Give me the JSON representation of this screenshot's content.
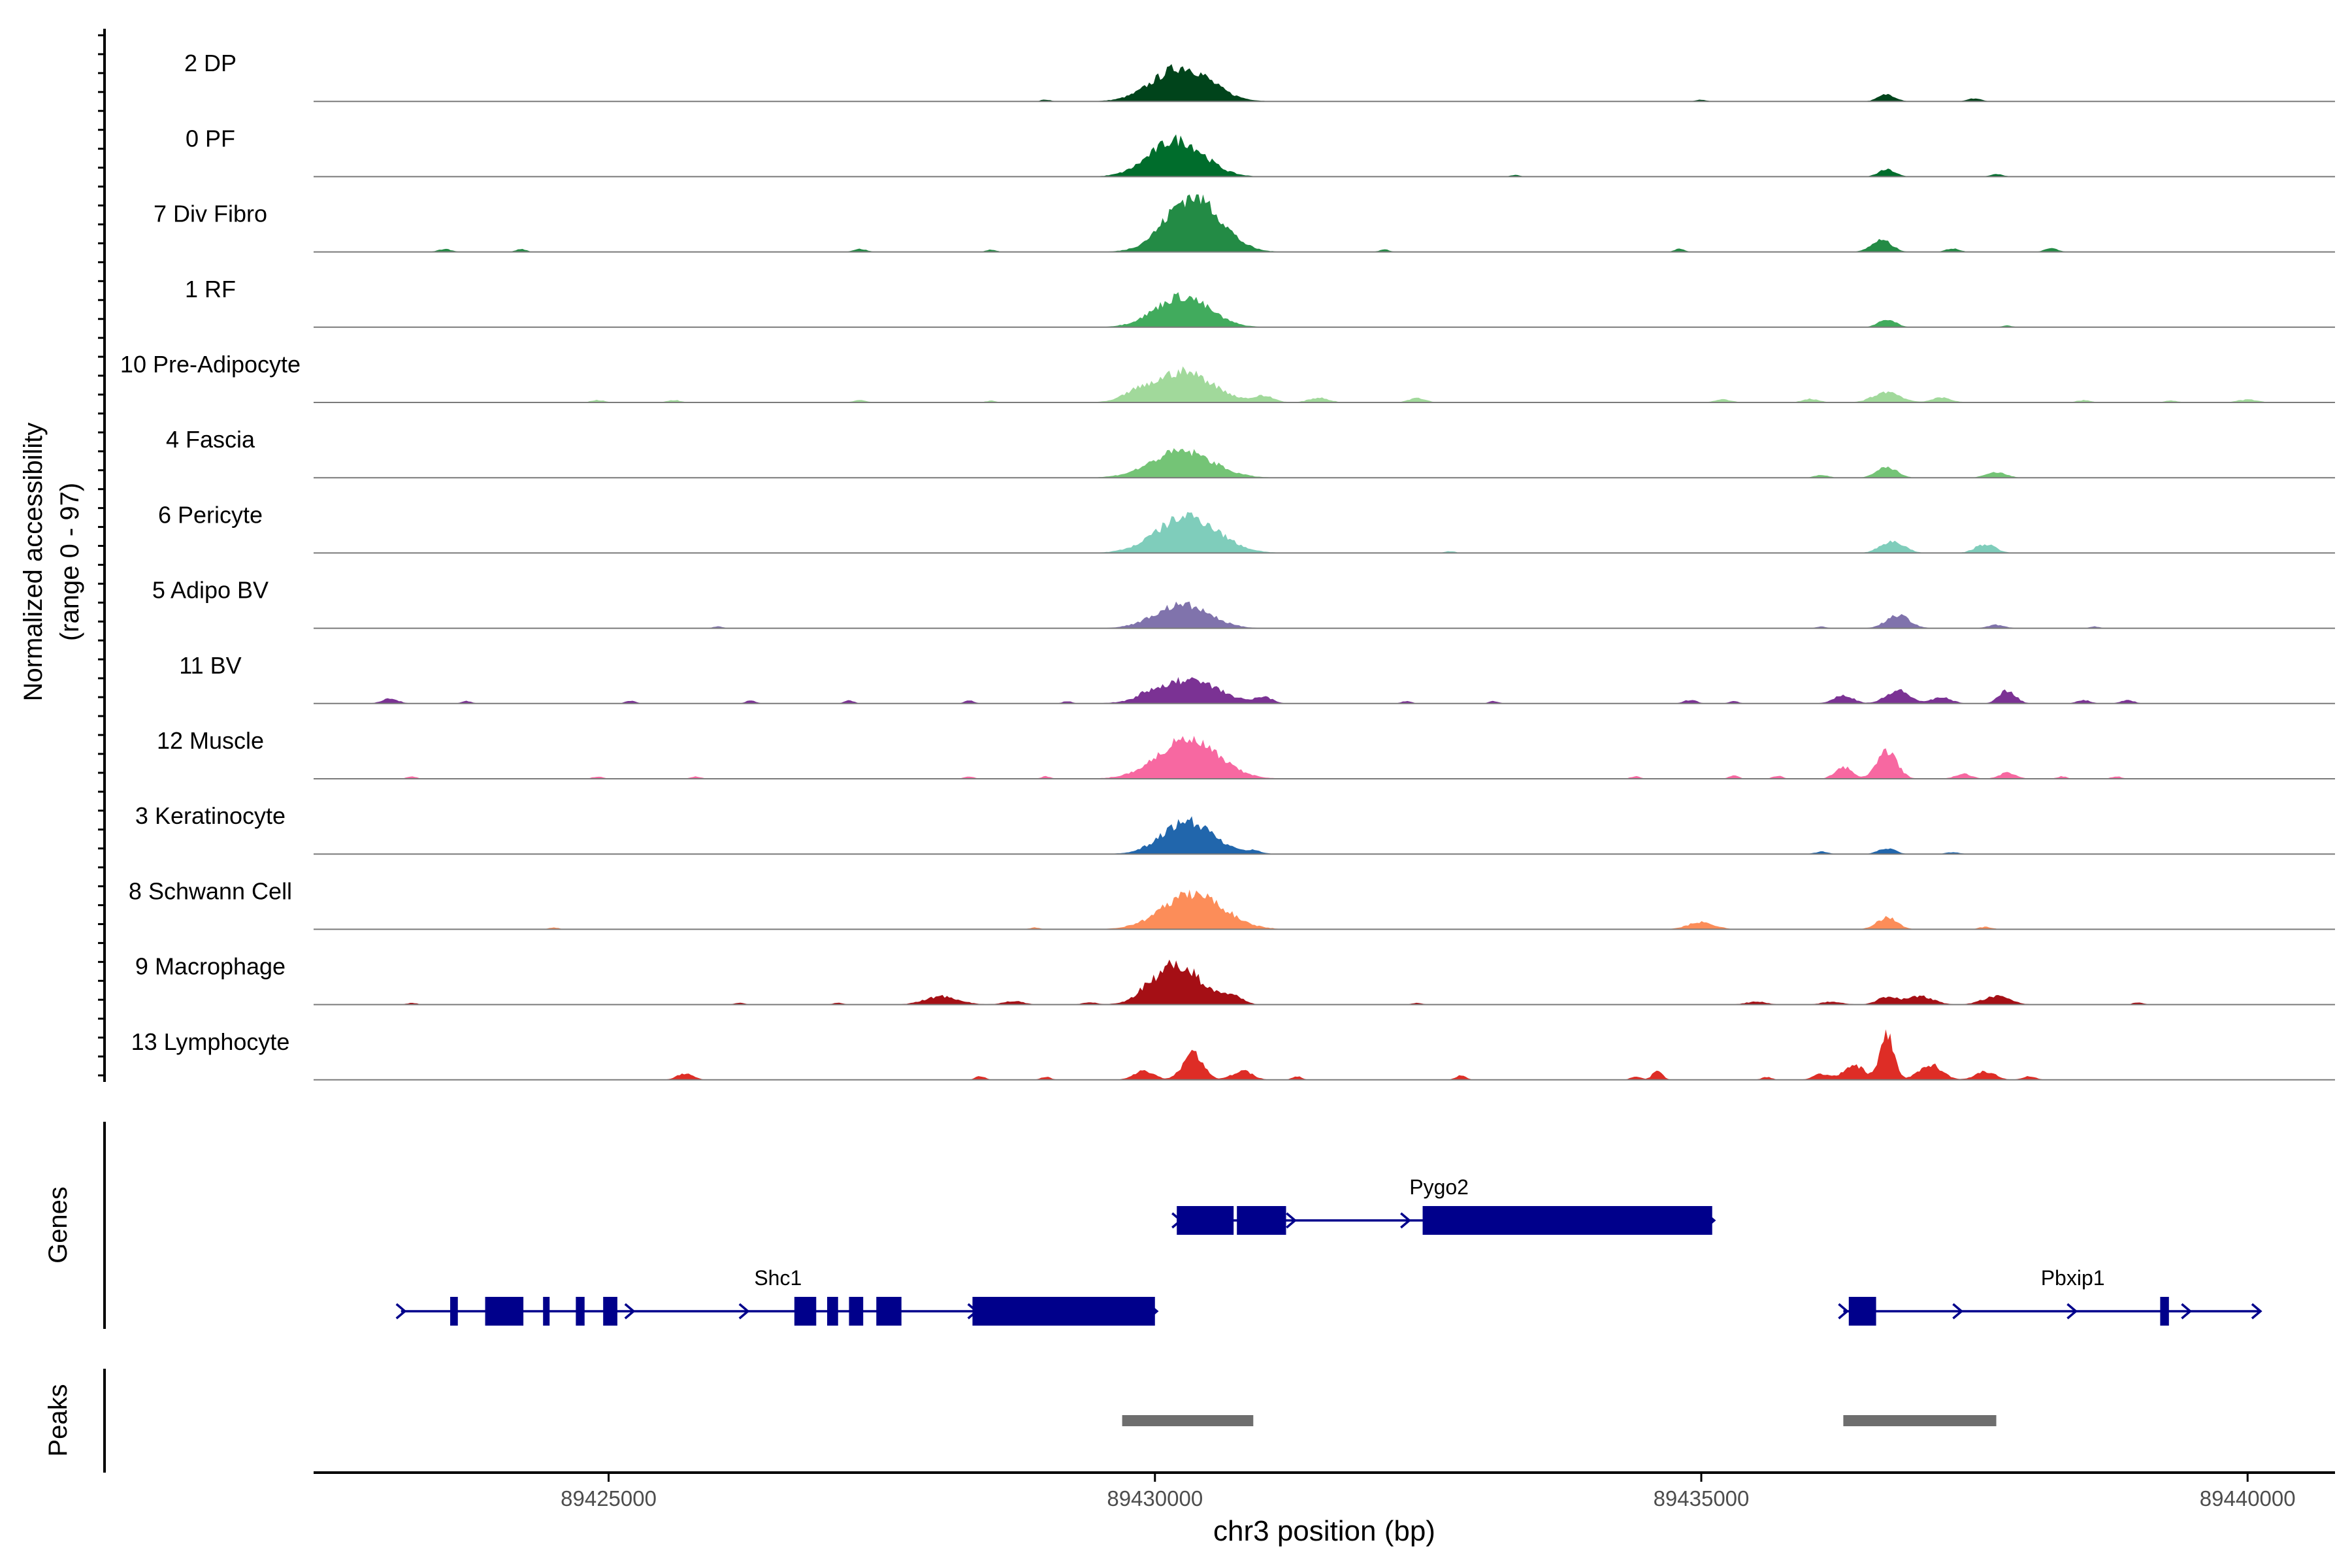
{
  "chart_data": {
    "type": "genome-track",
    "title": "",
    "ylabel_line1": "Normalized accessibility",
    "ylabel_line2": "(range 0 - 97)",
    "y_range": [
      0,
      97
    ],
    "xlabel": "chr3 position (bp)",
    "chromosome": "chr3",
    "xlim": [
      89422300,
      89440800
    ],
    "x_ticks": [
      89425000,
      89430000,
      89435000,
      89440000
    ],
    "x_tick_labels": [
      "89425000",
      "89430000",
      "89435000",
      "89440000"
    ],
    "tracks": [
      {
        "label": "2 DP",
        "color": "#00441b",
        "peaks": [
          [
            89430250,
            58,
            850
          ],
          [
            89436700,
            12,
            250
          ],
          [
            89437500,
            5,
            200
          ],
          [
            89429000,
            3,
            150
          ],
          [
            89435000,
            3,
            150
          ]
        ]
      },
      {
        "label": "0 PF",
        "color": "#006d2c",
        "peaks": [
          [
            89430200,
            62,
            800
          ],
          [
            89436700,
            12,
            250
          ],
          [
            89437700,
            4,
            200
          ],
          [
            89433300,
            3,
            150
          ]
        ]
      },
      {
        "label": "7 Div Fibro",
        "color": "#238b45",
        "peaks": [
          [
            89430350,
            95,
            800
          ],
          [
            89436650,
            20,
            300
          ],
          [
            89437300,
            6,
            200
          ],
          [
            89438200,
            6,
            200
          ],
          [
            89423500,
            5,
            200
          ],
          [
            89424200,
            5,
            150
          ],
          [
            89427300,
            5,
            200
          ],
          [
            89428500,
            4,
            150
          ],
          [
            89432100,
            4,
            150
          ],
          [
            89434800,
            5,
            150
          ]
        ]
      },
      {
        "label": "1 RF",
        "color": "#41ab5d",
        "peaks": [
          [
            89430250,
            52,
            800
          ],
          [
            89436700,
            14,
            250
          ],
          [
            89437800,
            3,
            150
          ]
        ]
      },
      {
        "label": "10 Pre-Adipocyte",
        "color": "#a1d99b",
        "peaks": [
          [
            89430250,
            52,
            900
          ],
          [
            89431000,
            10,
            300
          ],
          [
            89431500,
            8,
            300
          ],
          [
            89432400,
            8,
            250
          ],
          [
            89436700,
            18,
            400
          ],
          [
            89437200,
            8,
            300
          ],
          [
            89436000,
            6,
            250
          ],
          [
            89435200,
            5,
            250
          ],
          [
            89438500,
            4,
            200
          ],
          [
            89440000,
            5,
            300
          ],
          [
            89424900,
            4,
            200
          ],
          [
            89425600,
            4,
            200
          ],
          [
            89427300,
            4,
            200
          ],
          [
            89428500,
            3,
            150
          ],
          [
            89429800,
            8,
            300
          ],
          [
            89439300,
            3,
            200
          ]
        ]
      },
      {
        "label": "4 Fascia",
        "color": "#74c476",
        "peaks": [
          [
            89430250,
            45,
            900
          ],
          [
            89436700,
            18,
            300
          ],
          [
            89437700,
            9,
            300
          ],
          [
            89436100,
            5,
            200
          ]
        ]
      },
      {
        "label": "6 Pericyte",
        "color": "#7fcdbb",
        "peaks": [
          [
            89430300,
            62,
            900
          ],
          [
            89436750,
            20,
            350
          ],
          [
            89437600,
            15,
            300
          ],
          [
            89432700,
            3,
            150
          ]
        ]
      },
      {
        "label": "5 Adipo BV",
        "color": "#8073ac",
        "peaks": [
          [
            89430250,
            40,
            800
          ],
          [
            89436800,
            22,
            350
          ],
          [
            89437700,
            6,
            250
          ],
          [
            89426000,
            3,
            150
          ],
          [
            89436100,
            3,
            150
          ],
          [
            89438600,
            3,
            150
          ]
        ]
      },
      {
        "label": "11 BV",
        "color": "#7b3294",
        "peaks": [
          [
            89430300,
            40,
            900
          ],
          [
            89436800,
            22,
            350
          ],
          [
            89437800,
            22,
            250
          ],
          [
            89436300,
            14,
            300
          ],
          [
            89437200,
            10,
            300
          ],
          [
            89423000,
            8,
            250
          ],
          [
            89423700,
            4,
            150
          ],
          [
            89425200,
            5,
            150
          ],
          [
            89426300,
            5,
            150
          ],
          [
            89427200,
            5,
            150
          ],
          [
            89428300,
            5,
            150
          ],
          [
            89431000,
            10,
            250
          ],
          [
            89432300,
            4,
            150
          ],
          [
            89433100,
            4,
            150
          ],
          [
            89434900,
            6,
            200
          ],
          [
            89435300,
            4,
            150
          ],
          [
            89438500,
            6,
            200
          ],
          [
            89438900,
            6,
            200
          ],
          [
            89429200,
            4,
            150
          ],
          [
            89429900,
            6,
            200
          ]
        ]
      },
      {
        "label": "12 Muscle",
        "color": "#f768a1",
        "peaks": [
          [
            89430300,
            65,
            900
          ],
          [
            89436700,
            45,
            300
          ],
          [
            89436300,
            20,
            250
          ],
          [
            89437400,
            8,
            250
          ],
          [
            89437800,
            10,
            250
          ],
          [
            89423200,
            4,
            150
          ],
          [
            89424900,
            4,
            150
          ],
          [
            89425800,
            4,
            150
          ],
          [
            89428300,
            4,
            150
          ],
          [
            89429000,
            4,
            150
          ],
          [
            89434400,
            4,
            150
          ],
          [
            89435300,
            5,
            150
          ],
          [
            89435700,
            5,
            150
          ],
          [
            89438300,
            4,
            150
          ],
          [
            89438800,
            4,
            150
          ]
        ]
      },
      {
        "label": "3 Keratinocyte",
        "color": "#2166ac",
        "peaks": [
          [
            89430300,
            55,
            750
          ],
          [
            89436700,
            10,
            250
          ],
          [
            89436100,
            4,
            200
          ],
          [
            89437300,
            3,
            200
          ],
          [
            89430900,
            5,
            250
          ]
        ]
      },
      {
        "label": "8 Schwann Cell",
        "color": "#fc8d59",
        "peaks": [
          [
            89430350,
            60,
            900
          ],
          [
            89436700,
            20,
            300
          ],
          [
            89435000,
            12,
            400
          ],
          [
            89437600,
            4,
            200
          ],
          [
            89424500,
            3,
            150
          ],
          [
            89428900,
            3,
            150
          ]
        ]
      },
      {
        "label": "9 Macrophage",
        "color": "#a50f15",
        "peaks": [
          [
            89430200,
            68,
            700
          ],
          [
            89430700,
            15,
            300
          ],
          [
            89428050,
            14,
            500
          ],
          [
            89428700,
            6,
            300
          ],
          [
            89437000,
            14,
            400
          ],
          [
            89437700,
            14,
            400
          ],
          [
            89436700,
            12,
            300
          ],
          [
            89435500,
            5,
            300
          ],
          [
            89436200,
            5,
            300
          ],
          [
            89429400,
            4,
            200
          ],
          [
            89429900,
            5,
            200
          ],
          [
            89432400,
            3,
            150
          ],
          [
            89439000,
            4,
            150
          ],
          [
            89423200,
            3,
            150
          ],
          [
            89426200,
            3,
            150
          ],
          [
            89427100,
            3,
            150
          ]
        ]
      },
      {
        "label": "13 Lymphocyte",
        "color": "#de2d26",
        "peaks": [
          [
            89430350,
            45,
            300
          ],
          [
            89429900,
            15,
            300
          ],
          [
            89430800,
            15,
            300
          ],
          [
            89436700,
            78,
            200
          ],
          [
            89436400,
            25,
            300
          ],
          [
            89437100,
            25,
            350
          ],
          [
            89437600,
            14,
            300
          ],
          [
            89436100,
            10,
            250
          ],
          [
            89434600,
            16,
            150
          ],
          [
            89438000,
            6,
            200
          ],
          [
            89425700,
            10,
            250
          ],
          [
            89428400,
            6,
            150
          ],
          [
            89429000,
            5,
            150
          ],
          [
            89431300,
            6,
            150
          ],
          [
            89432800,
            8,
            150
          ],
          [
            89434400,
            6,
            150
          ],
          [
            89435600,
            5,
            150
          ]
        ]
      }
    ],
    "genes_label": "Genes",
    "genes": [
      {
        "name": "Pygo2",
        "start": 89430200,
        "end": 89435100,
        "strand": "+",
        "row": 0,
        "exons": [
          [
            89430200,
            89430720
          ],
          [
            89430750,
            89431200
          ],
          [
            89432450,
            89435100
          ]
        ]
      },
      {
        "name": "Shc1",
        "start": 89423100,
        "end": 89430000,
        "strand": "+",
        "row": 1,
        "exons": [
          [
            89423550,
            89423620
          ],
          [
            89423870,
            89424220
          ],
          [
            89424400,
            89424460
          ],
          [
            89424700,
            89424780
          ],
          [
            89424950,
            89425080
          ],
          [
            89426700,
            89426900
          ],
          [
            89427000,
            89427100
          ],
          [
            89427200,
            89427330
          ],
          [
            89427450,
            89427680
          ],
          [
            89428330,
            89430000
          ]
        ]
      },
      {
        "name": "Pbxip1",
        "start": 89436300,
        "end": 89440100,
        "strand": "+",
        "row": 1,
        "exons": [
          [
            89436350,
            89436600
          ],
          [
            89439200,
            89439280
          ]
        ]
      }
    ],
    "gene_color": "#00008b",
    "peaks_label": "Peaks",
    "peak_regions": [
      [
        89429700,
        89430900
      ],
      [
        89436300,
        89437700
      ]
    ],
    "peak_color": "#6e6e6e"
  }
}
